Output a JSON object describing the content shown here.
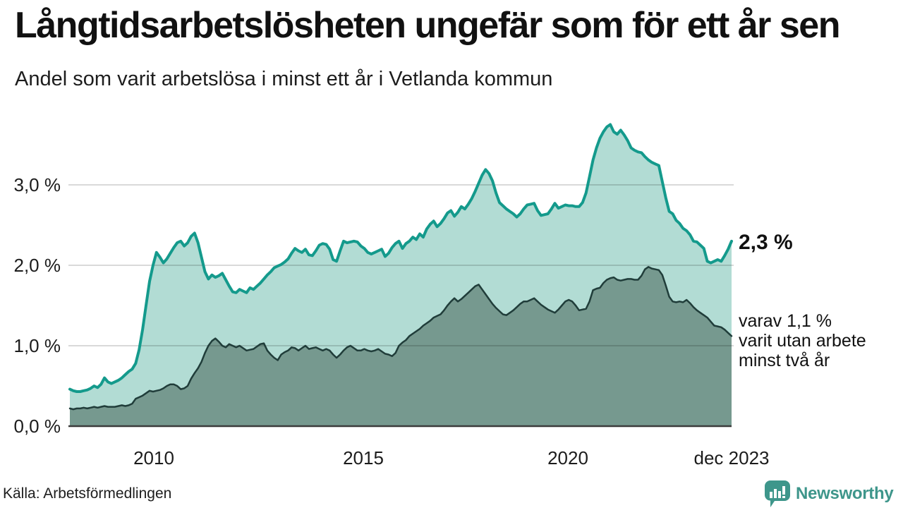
{
  "header": {
    "title": "Långtidsarbetslösheten ungefär som för ett år sen",
    "subtitle": "Andel som varit arbetslösa i minst ett år i Vetlanda kommun"
  },
  "chart_data": {
    "type": "area",
    "title": "Långtidsarbetslösheten ungefär som för ett år sen",
    "subtitle": "Andel som varit arbetslösa i minst ett år i Vetlanda kommun",
    "unit": "%",
    "frequency": "monthly",
    "x_start": "2008-01",
    "x_end": "2023-12",
    "ylim": [
      0,
      3.9
    ],
    "grid": "horizontal",
    "y_tick_labels": [
      "3,0 %",
      "2,0 %",
      "1,0 %",
      "0,0 %"
    ],
    "x_tick_labels": [
      "2010",
      "2015",
      "2020",
      "dec 2023"
    ],
    "colors": {
      "line_1yr": "#149a8c",
      "fill_1yr": "#b2dcd4",
      "line_2yr": "#203d3a",
      "fill_2yr": "#76998f",
      "gridline": "rgba(0,0,0,0.15)",
      "baseline": "#3c3c3c"
    },
    "series": [
      {
        "name": "Andel arbetslösa minst ett år",
        "end_value": "2,3 %",
        "values": [
          0.46,
          0.44,
          0.43,
          0.43,
          0.44,
          0.45,
          0.47,
          0.5,
          0.48,
          0.52,
          0.6,
          0.55,
          0.53,
          0.55,
          0.57,
          0.6,
          0.64,
          0.68,
          0.71,
          0.78,
          0.95,
          1.2,
          1.5,
          1.8,
          2.0,
          2.16,
          2.1,
          2.03,
          2.08,
          2.15,
          2.22,
          2.28,
          2.3,
          2.24,
          2.28,
          2.36,
          2.4,
          2.28,
          2.1,
          1.92,
          1.83,
          1.88,
          1.85,
          1.87,
          1.9,
          1.82,
          1.74,
          1.67,
          1.66,
          1.7,
          1.68,
          1.66,
          1.72,
          1.7,
          1.74,
          1.78,
          1.83,
          1.88,
          1.92,
          1.97,
          1.99,
          2.01,
          2.04,
          2.08,
          2.15,
          2.21,
          2.18,
          2.16,
          2.2,
          2.13,
          2.12,
          2.18,
          2.25,
          2.27,
          2.26,
          2.2,
          2.07,
          2.05,
          2.18,
          2.3,
          2.28,
          2.29,
          2.3,
          2.29,
          2.24,
          2.21,
          2.16,
          2.14,
          2.16,
          2.18,
          2.2,
          2.11,
          2.15,
          2.22,
          2.27,
          2.3,
          2.21,
          2.27,
          2.3,
          2.35,
          2.32,
          2.39,
          2.35,
          2.45,
          2.51,
          2.55,
          2.48,
          2.52,
          2.58,
          2.65,
          2.68,
          2.61,
          2.66,
          2.73,
          2.7,
          2.76,
          2.83,
          2.92,
          3.02,
          3.12,
          3.19,
          3.14,
          3.05,
          2.9,
          2.78,
          2.74,
          2.7,
          2.67,
          2.64,
          2.6,
          2.64,
          2.7,
          2.75,
          2.76,
          2.77,
          2.68,
          2.62,
          2.63,
          2.64,
          2.7,
          2.77,
          2.71,
          2.73,
          2.75,
          2.74,
          2.74,
          2.73,
          2.73,
          2.78,
          2.9,
          3.1,
          3.31,
          3.46,
          3.58,
          3.66,
          3.72,
          3.75,
          3.66,
          3.63,
          3.68,
          3.62,
          3.55,
          3.46,
          3.43,
          3.41,
          3.4,
          3.35,
          3.31,
          3.28,
          3.26,
          3.24,
          3.04,
          2.84,
          2.67,
          2.64,
          2.56,
          2.52,
          2.46,
          2.43,
          2.38,
          2.3,
          2.29,
          2.25,
          2.21,
          2.05,
          2.03,
          2.05,
          2.07,
          2.05,
          2.12,
          2.2,
          2.3
        ]
      },
      {
        "name": "Andel arbetslösa minst två år",
        "end_value": "1,1 %",
        "values": [
          0.22,
          0.21,
          0.22,
          0.22,
          0.23,
          0.22,
          0.23,
          0.24,
          0.23,
          0.24,
          0.25,
          0.24,
          0.24,
          0.24,
          0.25,
          0.26,
          0.25,
          0.26,
          0.28,
          0.34,
          0.36,
          0.38,
          0.41,
          0.44,
          0.43,
          0.44,
          0.45,
          0.47,
          0.5,
          0.52,
          0.52,
          0.5,
          0.46,
          0.47,
          0.5,
          0.59,
          0.66,
          0.72,
          0.8,
          0.91,
          1.0,
          1.06,
          1.09,
          1.05,
          1.0,
          0.98,
          1.02,
          1.0,
          0.98,
          1.0,
          0.97,
          0.94,
          0.95,
          0.96,
          0.99,
          1.02,
          1.03,
          0.94,
          0.89,
          0.85,
          0.82,
          0.89,
          0.92,
          0.94,
          0.98,
          0.97,
          0.94,
          0.97,
          1.0,
          0.96,
          0.97,
          0.98,
          0.96,
          0.94,
          0.96,
          0.94,
          0.89,
          0.85,
          0.89,
          0.94,
          0.98,
          1.0,
          0.97,
          0.94,
          0.94,
          0.96,
          0.94,
          0.93,
          0.94,
          0.96,
          0.93,
          0.9,
          0.89,
          0.87,
          0.91,
          1.0,
          1.04,
          1.07,
          1.12,
          1.15,
          1.18,
          1.21,
          1.25,
          1.28,
          1.31,
          1.35,
          1.37,
          1.39,
          1.44,
          1.5,
          1.55,
          1.59,
          1.55,
          1.58,
          1.62,
          1.66,
          1.7,
          1.74,
          1.76,
          1.7,
          1.64,
          1.58,
          1.52,
          1.47,
          1.43,
          1.39,
          1.38,
          1.41,
          1.44,
          1.48,
          1.52,
          1.55,
          1.55,
          1.57,
          1.59,
          1.55,
          1.51,
          1.48,
          1.45,
          1.43,
          1.41,
          1.45,
          1.5,
          1.55,
          1.57,
          1.55,
          1.5,
          1.44,
          1.45,
          1.46,
          1.55,
          1.69,
          1.71,
          1.72,
          1.78,
          1.82,
          1.84,
          1.85,
          1.82,
          1.81,
          1.82,
          1.83,
          1.83,
          1.82,
          1.82,
          1.87,
          1.95,
          1.98,
          1.96,
          1.95,
          1.94,
          1.88,
          1.75,
          1.61,
          1.55,
          1.54,
          1.55,
          1.54,
          1.57,
          1.53,
          1.48,
          1.44,
          1.41,
          1.38,
          1.35,
          1.3,
          1.25,
          1.24,
          1.23,
          1.2,
          1.16,
          1.12
        ]
      }
    ],
    "annotations": {
      "end_value_label": "2,3 %",
      "sub_label_lines": [
        "varav 1,1 %",
        "varit utan arbete",
        "minst två år"
      ]
    }
  },
  "footer": {
    "source": "Källa: Arbetsförmedlingen",
    "brand": "Newsworthy"
  }
}
